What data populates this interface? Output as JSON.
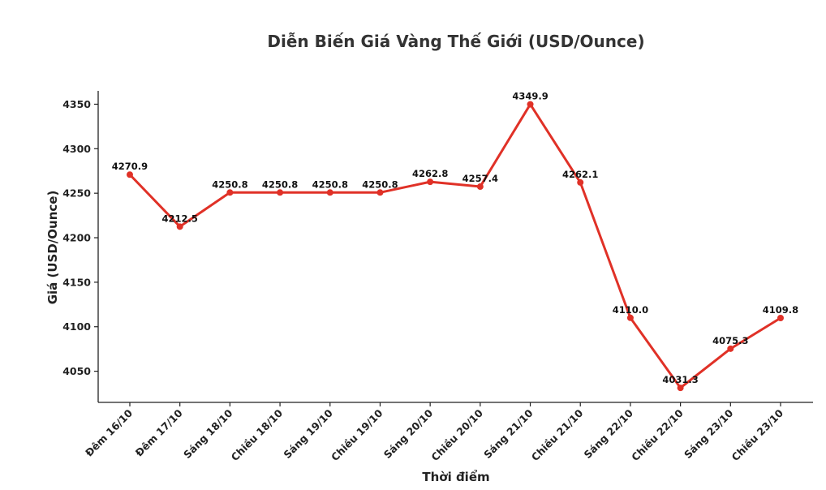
{
  "chart_data": {
    "type": "line",
    "title": "Diễn Biến Giá Vàng Thế Giới (USD/Ounce)",
    "xlabel": "Thời điểm",
    "ylabel": "Giá (USD/Ounce)",
    "categories": [
      "Đêm 16/10",
      "Đêm 17/10",
      "Sáng 18/10",
      "Chiều 18/10",
      "Sáng 19/10",
      "Chiều 19/10",
      "Sáng 20/10",
      "Chiều 20/10",
      "Sáng 21/10",
      "Chiều 21/10",
      "Sáng 22/10",
      "Chiều 22/10",
      "Sáng 23/10",
      "Chiều 23/10"
    ],
    "values": [
      4270.9,
      4212.5,
      4250.8,
      4250.8,
      4250.8,
      4250.8,
      4262.8,
      4257.4,
      4349.9,
      4262.1,
      4110.0,
      4031.3,
      4075.3,
      4109.8
    ],
    "value_labels": [
      "4270.9",
      "4212.5",
      "4250.8",
      "4250.8",
      "4250.8",
      "4250.8",
      "4262.8",
      "4257.4",
      "4349.9",
      "4262.1",
      "4110.0",
      "4031.3",
      "4075.3",
      "4109.8"
    ],
    "yticks": [
      "4050",
      "4100",
      "4150",
      "4200",
      "4250",
      "4300",
      "4350"
    ],
    "ylim": [
      4015,
      4365
    ],
    "line_color": "#e03127",
    "grid": false,
    "legend": "none"
  }
}
